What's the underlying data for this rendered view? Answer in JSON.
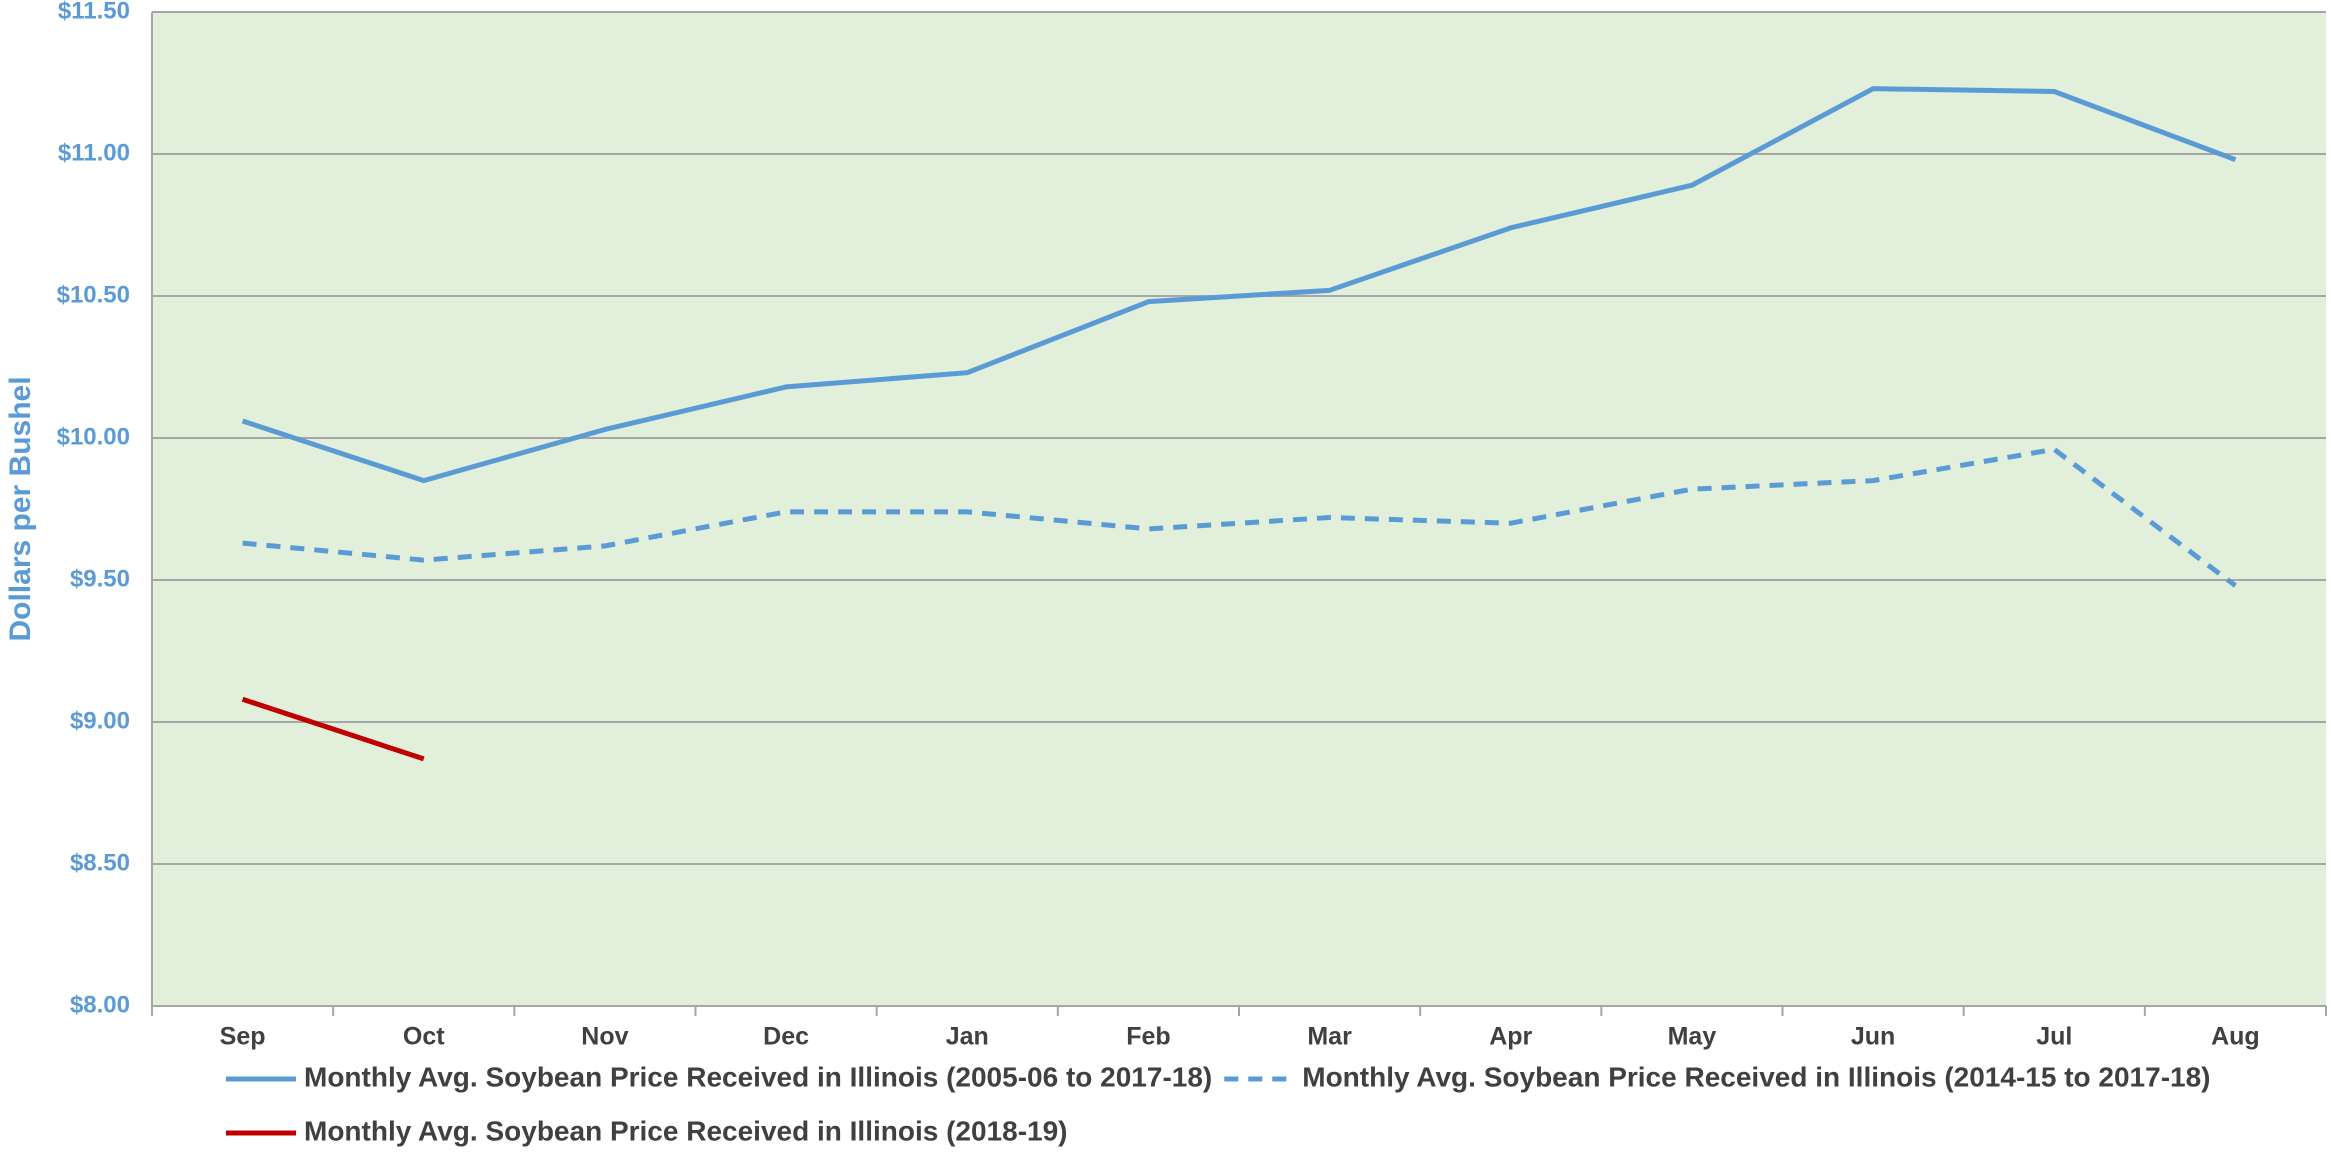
{
  "chart_data": {
    "type": "line",
    "ylabel": "Dollars per Bushel",
    "categories": [
      "Sep",
      "Oct",
      "Nov",
      "Dec",
      "Jan",
      "Feb",
      "Mar",
      "Apr",
      "May",
      "Jun",
      "Jul",
      "Aug"
    ],
    "series": [
      {
        "name": "Monthly Avg. Soybean Price Received in Illinois (2005-06 to 2017-18)",
        "color": "#5b9bd5",
        "dash": false,
        "values": [
          10.06,
          9.85,
          10.03,
          10.18,
          10.23,
          10.48,
          10.52,
          10.74,
          10.89,
          11.23,
          11.22,
          10.98
        ]
      },
      {
        "name": "Monthly Avg. Soybean Price Received in Illinois (2014-15 to 2017-18)",
        "color": "#5b9bd5",
        "dash": true,
        "values": [
          9.63,
          9.57,
          9.62,
          9.74,
          9.74,
          9.68,
          9.72,
          9.7,
          9.82,
          9.85,
          9.96,
          9.48
        ]
      },
      {
        "name": "Monthly Avg. Soybean Price Received in Illinois (2018-19)",
        "color": "#c00000",
        "dash": false,
        "values": [
          9.08,
          8.87,
          null,
          null,
          null,
          null,
          null,
          null,
          null,
          null,
          null,
          null
        ]
      }
    ],
    "ylim": [
      8,
      11.5
    ],
    "yticks": [
      {
        "value": 8,
        "label": "$8.00"
      },
      {
        "value": 8.5,
        "label": "$8.50"
      },
      {
        "value": 9,
        "label": "$9.00"
      },
      {
        "value": 9.5,
        "label": "$9.50"
      },
      {
        "value": 10,
        "label": "$10.00"
      },
      {
        "value": 10.5,
        "label": "$10.50"
      },
      {
        "value": 11,
        "label": "$11.00"
      },
      {
        "value": 11.5,
        "label": "$11.50"
      }
    ],
    "grid": true,
    "background": "#e2efda",
    "legend": "bottom"
  }
}
